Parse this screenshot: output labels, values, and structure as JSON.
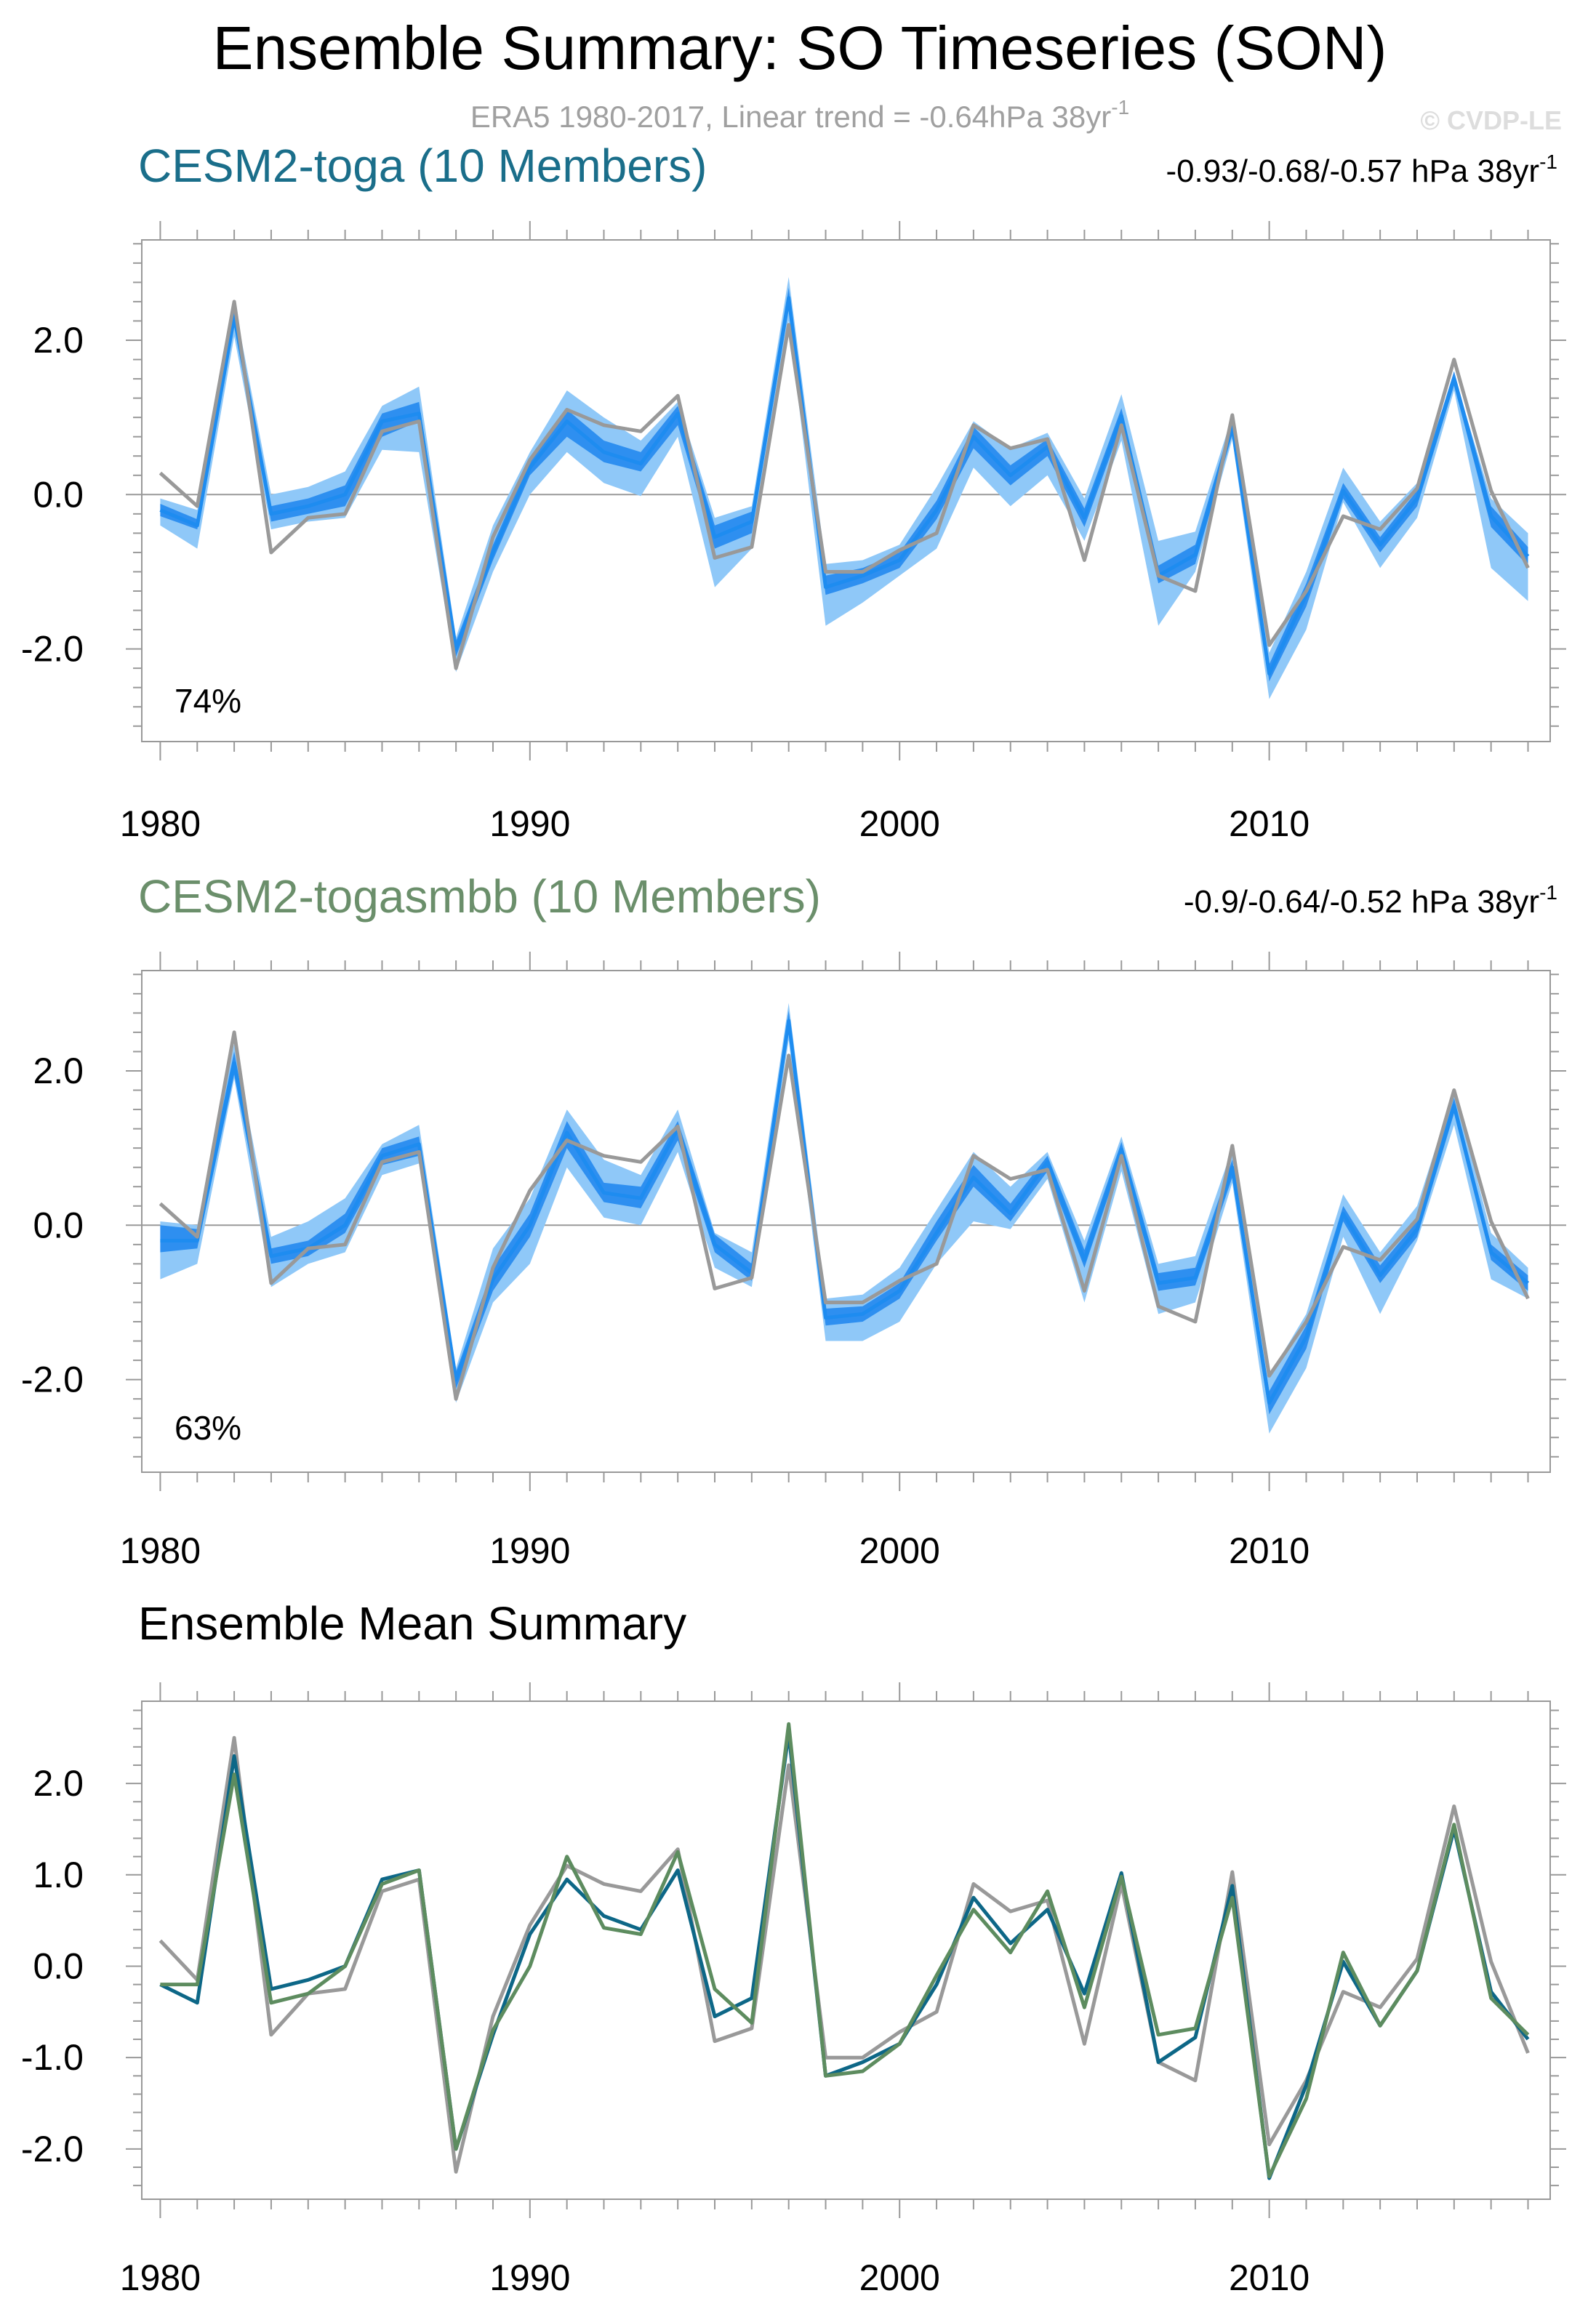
{
  "figure": {
    "title": "Ensemble Summary: SO Timeseries (SON)",
    "subtitle": "ERA5 1980-2017, Linear trend = -0.64hPa 38yr",
    "subtitle_sup": "-1",
    "watermark": "© CVDP-LE"
  },
  "colors": {
    "obs": "#999999",
    "band_outer": "#8fc8f8",
    "band_inner": "#2e8ff0",
    "member_mean": "#1e8cf0",
    "toga": "#0d6787",
    "togasmbb": "#5d8c5f",
    "title_toga": "#1a6e8a",
    "title_togasmbb": "#6b8f6b"
  },
  "chart_data": [
    {
      "type": "line",
      "panel": "toga",
      "title": "CESM2-toga (10 Members)",
      "trend_label": "-0.93/-0.68/-0.57 hPa 38yr",
      "trend_sup": "-1",
      "correlation_label": "74%",
      "ylim": [
        -3.2,
        3.3
      ],
      "yticks": [
        "2.0",
        "0.0",
        "-2.0"
      ],
      "ytick_values": [
        2.0,
        0.0,
        -2.0
      ],
      "xlim": [
        1979.5,
        2017.6
      ],
      "xticks": [
        "1980",
        "1990",
        "2000",
        "2010"
      ],
      "xtick_values": [
        1980,
        1990,
        2000,
        2010
      ],
      "x": [
        1980,
        1981,
        1982,
        1983,
        1984,
        1985,
        1986,
        1987,
        1988,
        1989,
        1990,
        1991,
        1992,
        1993,
        1994,
        1995,
        1996,
        1997,
        1998,
        1999,
        2000,
        2001,
        2002,
        2003,
        2004,
        2005,
        2006,
        2007,
        2008,
        2009,
        2010,
        2011,
        2012,
        2013,
        2014,
        2015,
        2016,
        2017
      ],
      "observed": [
        0.28,
        -0.15,
        2.5,
        -0.75,
        -0.3,
        -0.25,
        0.82,
        0.95,
        -2.25,
        -0.55,
        0.45,
        1.1,
        0.9,
        0.82,
        1.28,
        -0.82,
        -0.68,
        2.2,
        -1.0,
        -1.0,
        -0.72,
        -0.5,
        0.9,
        0.6,
        0.72,
        -0.85,
        0.9,
        -1.05,
        -1.25,
        1.03,
        -1.95,
        -1.25,
        -0.28,
        -0.45,
        0.08,
        1.75,
        0.05,
        -0.95
      ],
      "member_mean": [
        -0.2,
        -0.4,
        2.3,
        -0.25,
        -0.15,
        0.0,
        0.95,
        1.05,
        -2.0,
        -0.75,
        0.35,
        0.95,
        0.55,
        0.4,
        1.05,
        -0.55,
        -0.35,
        2.55,
        -1.2,
        -1.05,
        -0.85,
        -0.2,
        0.75,
        0.25,
        0.62,
        -0.3,
        1.02,
        -1.05,
        -0.78,
        0.88,
        -2.32,
        -1.3,
        0.05,
        -0.65,
        -0.05,
        1.5,
        -0.28,
        -0.8
      ],
      "band_inner_low": [
        -0.28,
        -0.45,
        2.2,
        -0.35,
        -0.25,
        -0.15,
        0.75,
        0.95,
        -2.1,
        -0.85,
        0.25,
        0.75,
        0.42,
        0.3,
        0.9,
        -0.7,
        -0.5,
        2.4,
        -1.3,
        -1.15,
        -0.95,
        -0.32,
        0.6,
        0.12,
        0.5,
        -0.42,
        0.9,
        -1.15,
        -0.9,
        0.78,
        -2.42,
        -1.45,
        -0.05,
        -0.75,
        -0.15,
        1.42,
        -0.42,
        -0.92
      ],
      "band_inner_high": [
        -0.12,
        -0.32,
        2.42,
        -0.15,
        -0.05,
        0.12,
        1.05,
        1.2,
        -1.9,
        -0.65,
        0.45,
        1.1,
        0.7,
        0.55,
        1.15,
        -0.4,
        -0.22,
        2.68,
        -1.05,
        -0.95,
        -0.75,
        -0.08,
        0.88,
        0.38,
        0.72,
        -0.18,
        1.12,
        -0.92,
        -0.65,
        0.98,
        -2.2,
        -1.15,
        0.15,
        -0.55,
        0.05,
        1.6,
        -0.15,
        -0.68
      ],
      "band_outer_low": [
        -0.4,
        -0.7,
        2.05,
        -0.45,
        -0.35,
        -0.3,
        0.58,
        0.55,
        -2.3,
        -1.0,
        0.0,
        0.55,
        0.15,
        -0.02,
        0.75,
        -1.2,
        -0.7,
        2.25,
        -1.7,
        -1.4,
        -1.05,
        -0.7,
        0.35,
        -0.15,
        0.25,
        -0.6,
        0.7,
        -1.7,
        -1.0,
        0.72,
        -2.65,
        -1.75,
        -0.1,
        -0.95,
        -0.3,
        1.35,
        -0.95,
        -1.38
      ],
      "band_outer_high": [
        -0.05,
        -0.2,
        2.5,
        0.0,
        0.1,
        0.3,
        1.15,
        1.4,
        -1.85,
        -0.4,
        0.55,
        1.35,
        1.0,
        0.7,
        1.2,
        -0.3,
        -0.15,
        2.82,
        -0.9,
        -0.85,
        -0.65,
        0.1,
        0.95,
        0.6,
        0.8,
        -0.05,
        1.3,
        -0.6,
        -0.48,
        1.02,
        -2.05,
        -1.0,
        0.35,
        -0.35,
        0.15,
        1.55,
        -0.05,
        -0.5
      ]
    },
    {
      "type": "line",
      "panel": "togasmbb",
      "title": "CESM2-togasmbb (10 Members)",
      "trend_label": "-0.9/-0.64/-0.52 hPa 38yr",
      "trend_sup": "-1",
      "correlation_label": "63%",
      "ylim": [
        -3.2,
        3.3
      ],
      "yticks": [
        "2.0",
        "0.0",
        "-2.0"
      ],
      "ytick_values": [
        2.0,
        0.0,
        -2.0
      ],
      "xlim": [
        1979.5,
        2017.6
      ],
      "xticks": [
        "1980",
        "1990",
        "2000",
        "2010"
      ],
      "xtick_values": [
        1980,
        1990,
        2000,
        2010
      ],
      "x": [
        1980,
        1981,
        1982,
        1983,
        1984,
        1985,
        1986,
        1987,
        1988,
        1989,
        1990,
        1991,
        1992,
        1993,
        1994,
        1995,
        1996,
        1997,
        1998,
        1999,
        2000,
        2001,
        2002,
        2003,
        2004,
        2005,
        2006,
        2007,
        2008,
        2009,
        2010,
        2011,
        2012,
        2013,
        2014,
        2015,
        2016,
        2017
      ],
      "observed": [
        0.28,
        -0.15,
        2.5,
        -0.75,
        -0.3,
        -0.25,
        0.82,
        0.95,
        -2.25,
        -0.55,
        0.45,
        1.1,
        0.9,
        0.82,
        1.28,
        -0.82,
        -0.68,
        2.2,
        -1.0,
        -1.0,
        -0.72,
        -0.5,
        0.9,
        0.6,
        0.72,
        -0.85,
        0.9,
        -1.05,
        -1.25,
        1.03,
        -1.95,
        -1.25,
        -0.28,
        -0.45,
        0.08,
        1.75,
        0.05,
        -0.95
      ],
      "member_mean": [
        -0.2,
        -0.2,
        2.1,
        -0.4,
        -0.3,
        0.0,
        0.9,
        1.05,
        -2.0,
        -0.7,
        0.0,
        1.2,
        0.42,
        0.35,
        1.25,
        -0.25,
        -0.62,
        2.65,
        -1.2,
        -1.15,
        -0.85,
        -0.1,
        0.62,
        0.15,
        0.82,
        -0.45,
        0.98,
        -0.75,
        -0.68,
        0.75,
        -2.3,
        -1.45,
        0.15,
        -0.65,
        -0.05,
        1.55,
        -0.35,
        -0.75
      ],
      "band_inner_low": [
        -0.35,
        -0.3,
        1.95,
        -0.5,
        -0.4,
        -0.1,
        0.78,
        0.9,
        -2.12,
        -0.85,
        -0.15,
        1.0,
        0.3,
        0.22,
        1.1,
        -0.35,
        -0.72,
        2.5,
        -1.3,
        -1.25,
        -0.95,
        -0.2,
        0.5,
        0.05,
        0.7,
        -0.55,
        0.88,
        -0.85,
        -0.78,
        0.62,
        -2.45,
        -1.6,
        0.05,
        -0.75,
        -0.15,
        1.45,
        -0.45,
        -0.85
      ],
      "band_inner_high": [
        0.0,
        -0.05,
        2.25,
        -0.3,
        -0.2,
        0.15,
        1.0,
        1.15,
        -1.9,
        -0.55,
        0.15,
        1.35,
        0.55,
        0.5,
        1.35,
        -0.12,
        -0.5,
        2.78,
        -1.08,
        -1.05,
        -0.75,
        0.05,
        0.78,
        0.28,
        0.9,
        -0.32,
        1.08,
        -0.62,
        -0.55,
        0.85,
        -2.15,
        -1.3,
        0.25,
        -0.52,
        0.05,
        1.65,
        -0.25,
        -0.65
      ],
      "band_outer_low": [
        -0.7,
        -0.5,
        1.9,
        -0.8,
        -0.5,
        -0.35,
        0.65,
        0.8,
        -2.3,
        -1.0,
        -0.5,
        0.75,
        0.1,
        0.0,
        0.95,
        -0.55,
        -0.8,
        2.4,
        -1.5,
        -1.5,
        -1.25,
        -0.5,
        0.05,
        -0.05,
        0.6,
        -1.0,
        0.7,
        -1.15,
        -1.0,
        0.55,
        -2.7,
        -1.85,
        -0.15,
        -1.15,
        -0.2,
        1.3,
        -0.7,
        -0.95
      ],
      "band_outer_high": [
        0.05,
        0.0,
        2.35,
        -0.15,
        0.05,
        0.35,
        1.05,
        1.3,
        -1.85,
        -0.3,
        0.35,
        1.5,
        0.85,
        0.65,
        1.5,
        -0.1,
        -0.35,
        2.88,
        -0.95,
        -0.9,
        -0.55,
        0.2,
        0.95,
        0.5,
        0.95,
        -0.2,
        1.15,
        -0.5,
        -0.4,
        1.0,
        -1.95,
        -1.15,
        0.4,
        -0.35,
        0.25,
        1.75,
        -0.1,
        -0.55
      ]
    },
    {
      "type": "line",
      "panel": "summary",
      "title": "Ensemble Mean Summary",
      "ylim": [
        -2.55,
        2.9
      ],
      "yticks": [
        "2.0",
        "1.0",
        "0.0",
        "-1.0",
        "-2.0"
      ],
      "ytick_values": [
        2.0,
        1.0,
        0.0,
        -1.0,
        -2.0
      ],
      "xlim": [
        1979.5,
        2017.6
      ],
      "xticks": [
        "1980",
        "1990",
        "2000",
        "2010"
      ],
      "xtick_values": [
        1980,
        1990,
        2000,
        2010
      ],
      "x": [
        1980,
        1981,
        1982,
        1983,
        1984,
        1985,
        1986,
        1987,
        1988,
        1989,
        1990,
        1991,
        1992,
        1993,
        1994,
        1995,
        1996,
        1997,
        1998,
        1999,
        2000,
        2001,
        2002,
        2003,
        2004,
        2005,
        2006,
        2007,
        2008,
        2009,
        2010,
        2011,
        2012,
        2013,
        2014,
        2015,
        2016,
        2017
      ],
      "series": [
        {
          "name": "ERA5",
          "color_key": "obs",
          "values": [
            0.28,
            -0.15,
            2.5,
            -0.75,
            -0.3,
            -0.25,
            0.82,
            0.95,
            -2.25,
            -0.55,
            0.45,
            1.1,
            0.9,
            0.82,
            1.28,
            -0.82,
            -0.68,
            2.2,
            -1.0,
            -1.0,
            -0.72,
            -0.5,
            0.9,
            0.6,
            0.72,
            -0.85,
            0.9,
            -1.05,
            -1.25,
            1.03,
            -1.95,
            -1.25,
            -0.28,
            -0.45,
            0.08,
            1.75,
            0.05,
            -0.95
          ]
        },
        {
          "name": "CESM2-toga",
          "color_key": "toga",
          "values": [
            -0.2,
            -0.4,
            2.3,
            -0.25,
            -0.15,
            0.0,
            0.95,
            1.05,
            -2.0,
            -0.75,
            0.35,
            0.95,
            0.55,
            0.4,
            1.05,
            -0.55,
            -0.35,
            2.55,
            -1.2,
            -1.05,
            -0.85,
            -0.2,
            0.75,
            0.25,
            0.62,
            -0.3,
            1.02,
            -1.05,
            -0.78,
            0.88,
            -2.32,
            -1.3,
            0.05,
            -0.65,
            -0.05,
            1.5,
            -0.28,
            -0.8
          ]
        },
        {
          "name": "CESM2-togasmbb",
          "color_key": "togasmbb",
          "values": [
            -0.2,
            -0.2,
            2.1,
            -0.4,
            -0.3,
            0.0,
            0.9,
            1.05,
            -2.0,
            -0.7,
            0.0,
            1.2,
            0.42,
            0.35,
            1.25,
            -0.25,
            -0.62,
            2.65,
            -1.2,
            -1.15,
            -0.85,
            -0.1,
            0.62,
            0.15,
            0.82,
            -0.45,
            0.98,
            -0.75,
            -0.68,
            0.75,
            -2.3,
            -1.45,
            0.15,
            -0.65,
            -0.05,
            1.55,
            -0.35,
            -0.75
          ]
        }
      ]
    }
  ]
}
